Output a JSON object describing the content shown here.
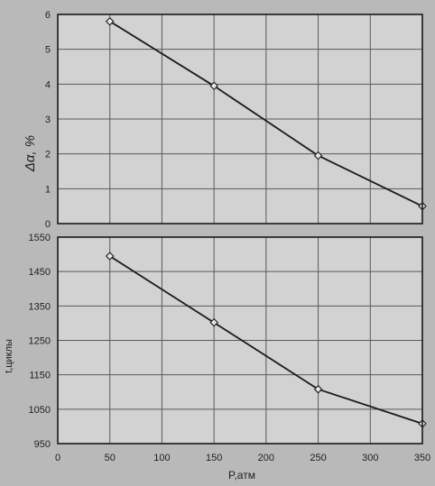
{
  "chart_data": [
    {
      "type": "line",
      "ylabel": "Δα, %",
      "xlim": [
        0,
        350
      ],
      "ylim": [
        0,
        6
      ],
      "x_ticks": [
        0,
        50,
        100,
        150,
        200,
        250,
        300,
        350
      ],
      "y_ticks": [
        0,
        1,
        2,
        3,
        4,
        5,
        6
      ],
      "y_tick_labels": [
        "0",
        "1",
        "2",
        "3",
        "4",
        "5",
        "6"
      ],
      "grid": true,
      "series": [
        {
          "x": [
            50,
            150,
            250,
            350
          ],
          "y": [
            5.8,
            3.95,
            1.95,
            0.5
          ]
        }
      ],
      "colors": {
        "line": "#1a1a1a",
        "marker_fill": "#e6e6e6",
        "grid": "#5a5a5a",
        "plot_bg": "#d2d2d2"
      }
    },
    {
      "type": "line",
      "xlabel": "P,атм",
      "ylabel": "t,циклы",
      "xlim": [
        0,
        350
      ],
      "ylim": [
        950,
        1550
      ],
      "x_ticks": [
        0,
        50,
        100,
        150,
        200,
        250,
        300,
        350
      ],
      "x_tick_labels": [
        "0",
        "50",
        "100",
        "150",
        "200",
        "250",
        "300",
        "350"
      ],
      "y_ticks": [
        950,
        1050,
        1150,
        1250,
        1350,
        1450,
        1550
      ],
      "y_tick_labels": [
        "950",
        "1050",
        "1150",
        "1250",
        "1350",
        "1450",
        "1550"
      ],
      "grid": true,
      "series": [
        {
          "x": [
            50,
            150,
            250,
            350
          ],
          "y": [
            1495,
            1302,
            1108,
            1008
          ]
        }
      ],
      "colors": {
        "line": "#1a1a1a",
        "marker_fill": "#e6e6e6",
        "grid": "#5a5a5a",
        "plot_bg": "#d2d2d2"
      }
    }
  ]
}
